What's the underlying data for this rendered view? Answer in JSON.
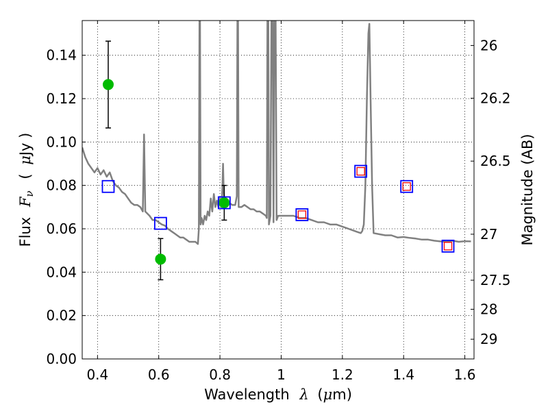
{
  "chart_data": {
    "type": "scatter",
    "xlabel": "Wavelength",
    "xlabel_symbol": "λ",
    "xlabel_unit_open": "(",
    "xlabel_unit_mu": "μ",
    "xlabel_unit_rest": "m)",
    "ylabel": "Flux",
    "ylabel_symbol": "F",
    "ylabel_symbol_sub": "ν",
    "ylabel_unit_open": "(",
    "ylabel_unit_mu": "μ",
    "ylabel_unit_rest": "Jy )",
    "y2label": "Magnitude (AB)",
    "xlim": [
      0.35,
      1.63
    ],
    "ylim": [
      0.0,
      0.156
    ],
    "grid": true,
    "grid_style": "dotted",
    "x_ticks": [
      0.4,
      0.6,
      0.8,
      1.0,
      1.2,
      1.4,
      1.6
    ],
    "x_tick_labels": [
      "0.4",
      "0.6",
      "0.8",
      "1",
      "1.2",
      "1.4",
      "1.6"
    ],
    "y_ticks": [
      0.0,
      0.02,
      0.04,
      0.06,
      0.08,
      0.1,
      0.12,
      0.14
    ],
    "y_tick_labels": [
      "0.00",
      "0.02",
      "0.04",
      "0.06",
      "0.08",
      "0.10",
      "0.12",
      "0.14"
    ],
    "y2_ticks": [
      {
        "label": "26",
        "flux": 0.1445
      },
      {
        "label": "26.2",
        "flux": 0.1202
      },
      {
        "label": "26.5",
        "flux": 0.0912
      },
      {
        "label": "27",
        "flux": 0.0575
      },
      {
        "label": "27.5",
        "flux": 0.0363
      },
      {
        "label": "28",
        "flux": 0.0229
      },
      {
        "label": "29",
        "flux": 0.0091
      }
    ],
    "series": [
      {
        "kind": "line",
        "color": "#808080",
        "points": [
          [
            0.35,
            0.0975
          ],
          [
            0.36,
            0.093
          ],
          [
            0.37,
            0.09
          ],
          [
            0.38,
            0.088
          ],
          [
            0.39,
            0.086
          ],
          [
            0.4,
            0.088
          ],
          [
            0.41,
            0.085
          ],
          [
            0.42,
            0.087
          ],
          [
            0.43,
            0.084
          ],
          [
            0.44,
            0.086
          ],
          [
            0.45,
            0.082
          ],
          [
            0.46,
            0.08
          ],
          [
            0.47,
            0.079
          ],
          [
            0.48,
            0.077
          ],
          [
            0.49,
            0.076
          ],
          [
            0.5,
            0.074
          ],
          [
            0.51,
            0.072
          ],
          [
            0.52,
            0.071
          ],
          [
            0.53,
            0.071
          ],
          [
            0.54,
            0.07
          ],
          [
            0.548,
            0.068
          ],
          [
            0.552,
            0.1035
          ],
          [
            0.556,
            0.068
          ],
          [
            0.57,
            0.066
          ],
          [
            0.58,
            0.064
          ],
          [
            0.59,
            0.064
          ],
          [
            0.6,
            0.063
          ],
          [
            0.61,
            0.062
          ],
          [
            0.62,
            0.0615
          ],
          [
            0.63,
            0.06
          ],
          [
            0.64,
            0.059
          ],
          [
            0.65,
            0.058
          ],
          [
            0.66,
            0.057
          ],
          [
            0.67,
            0.056
          ],
          [
            0.68,
            0.056
          ],
          [
            0.69,
            0.055
          ],
          [
            0.7,
            0.054
          ],
          [
            0.71,
            0.054
          ],
          [
            0.72,
            0.054
          ],
          [
            0.728,
            0.053
          ],
          [
            0.731,
            0.06
          ],
          [
            0.733,
            0.156
          ],
          [
            0.735,
            0.156
          ],
          [
            0.737,
            0.062
          ],
          [
            0.74,
            0.065
          ],
          [
            0.745,
            0.062
          ],
          [
            0.75,
            0.066
          ],
          [
            0.755,
            0.064
          ],
          [
            0.76,
            0.068
          ],
          [
            0.765,
            0.066
          ],
          [
            0.77,
            0.074
          ],
          [
            0.775,
            0.068
          ],
          [
            0.78,
            0.076
          ],
          [
            0.785,
            0.07
          ],
          [
            0.79,
            0.073
          ],
          [
            0.795,
            0.07
          ],
          [
            0.8,
            0.074
          ],
          [
            0.805,
            0.07
          ],
          [
            0.808,
            0.079
          ],
          [
            0.81,
            0.09
          ],
          [
            0.812,
            0.078
          ],
          [
            0.815,
            0.072
          ],
          [
            0.82,
            0.071
          ],
          [
            0.83,
            0.072
          ],
          [
            0.84,
            0.071
          ],
          [
            0.85,
            0.071
          ],
          [
            0.855,
            0.075
          ],
          [
            0.857,
            0.156
          ],
          [
            0.859,
            0.156
          ],
          [
            0.861,
            0.07
          ],
          [
            0.87,
            0.07
          ],
          [
            0.88,
            0.071
          ],
          [
            0.89,
            0.07
          ],
          [
            0.9,
            0.069
          ],
          [
            0.91,
            0.069
          ],
          [
            0.92,
            0.068
          ],
          [
            0.93,
            0.068
          ],
          [
            0.94,
            0.067
          ],
          [
            0.95,
            0.066
          ],
          [
            0.953,
            0.065
          ],
          [
            0.955,
            0.156
          ],
          [
            0.958,
            0.156
          ],
          [
            0.96,
            0.062
          ],
          [
            0.965,
            0.066
          ],
          [
            0.968,
            0.156
          ],
          [
            0.972,
            0.156
          ],
          [
            0.975,
            0.063
          ],
          [
            0.978,
            0.156
          ],
          [
            0.982,
            0.156
          ],
          [
            0.985,
            0.064
          ],
          [
            0.99,
            0.066
          ],
          [
            1.0,
            0.066
          ],
          [
            1.02,
            0.066
          ],
          [
            1.04,
            0.066
          ],
          [
            1.06,
            0.065
          ],
          [
            1.08,
            0.065
          ],
          [
            1.1,
            0.064
          ],
          [
            1.12,
            0.063
          ],
          [
            1.14,
            0.063
          ],
          [
            1.16,
            0.062
          ],
          [
            1.18,
            0.062
          ],
          [
            1.2,
            0.061
          ],
          [
            1.22,
            0.06
          ],
          [
            1.24,
            0.059
          ],
          [
            1.25,
            0.0585
          ],
          [
            1.26,
            0.058
          ],
          [
            1.265,
            0.059
          ],
          [
            1.27,
            0.062
          ],
          [
            1.275,
            0.08
          ],
          [
            1.28,
            0.12
          ],
          [
            1.285,
            0.15
          ],
          [
            1.288,
            0.1545
          ],
          [
            1.292,
            0.12
          ],
          [
            1.297,
            0.08
          ],
          [
            1.302,
            0.058
          ],
          [
            1.32,
            0.0575
          ],
          [
            1.34,
            0.057
          ],
          [
            1.36,
            0.057
          ],
          [
            1.38,
            0.056
          ],
          [
            1.4,
            0.0562
          ],
          [
            1.42,
            0.0558
          ],
          [
            1.44,
            0.0555
          ],
          [
            1.46,
            0.055
          ],
          [
            1.48,
            0.055
          ],
          [
            1.5,
            0.0545
          ],
          [
            1.52,
            0.0542
          ],
          [
            1.54,
            0.054
          ],
          [
            1.56,
            0.0545
          ],
          [
            1.58,
            0.054
          ],
          [
            1.6,
            0.0543
          ],
          [
            1.62,
            0.0542
          ]
        ]
      },
      {
        "kind": "points_with_error",
        "marker": "circle",
        "color": "#00bb00",
        "points": [
          {
            "x": 0.435,
            "y": 0.1265,
            "err": 0.02
          },
          {
            "x": 0.606,
            "y": 0.046,
            "err": 0.0095
          },
          {
            "x": 0.814,
            "y": 0.072,
            "err": 0.008
          }
        ]
      },
      {
        "kind": "points",
        "marker": "square",
        "color": "#0000ff",
        "points": [
          {
            "x": 0.435,
            "y": 0.0795
          },
          {
            "x": 0.606,
            "y": 0.0625
          },
          {
            "x": 0.814,
            "y": 0.072
          },
          {
            "x": 1.068,
            "y": 0.0665
          },
          {
            "x": 1.26,
            "y": 0.0865
          },
          {
            "x": 1.41,
            "y": 0.0795
          },
          {
            "x": 1.545,
            "y": 0.052
          }
        ]
      },
      {
        "kind": "points",
        "marker": "square-small",
        "color": "#ff0000",
        "points": [
          {
            "x": 1.068,
            "y": 0.0665
          },
          {
            "x": 1.26,
            "y": 0.0865
          },
          {
            "x": 1.41,
            "y": 0.0795
          },
          {
            "x": 1.545,
            "y": 0.052
          }
        ]
      }
    ]
  }
}
